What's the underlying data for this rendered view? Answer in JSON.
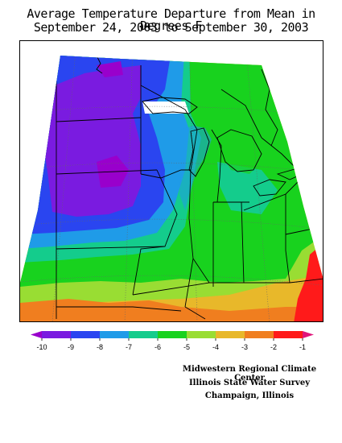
{
  "title_line1": "Average Temperature Departure from Mean in Degrees F",
  "title_line2": "September 24, 2003 to September 30, 2003",
  "legend": {
    "labels": [
      "-10",
      "-9",
      "-8",
      "-7",
      "-6",
      "-5",
      "-4",
      "-3",
      "-2",
      "-1"
    ],
    "colors": [
      "#9900cc",
      "#7a1be0",
      "#2a45f0",
      "#1f9be8",
      "#14cc8c",
      "#18d21e",
      "#99dd33",
      "#e8b82a",
      "#f07e1f",
      "#ff1a1a",
      "#e0157a"
    ]
  },
  "credits": {
    "line1": "Midwestern Regional Climate Center",
    "line2": "Illinois State Water Survey",
    "line3": "Champaign, Illinois"
  }
}
